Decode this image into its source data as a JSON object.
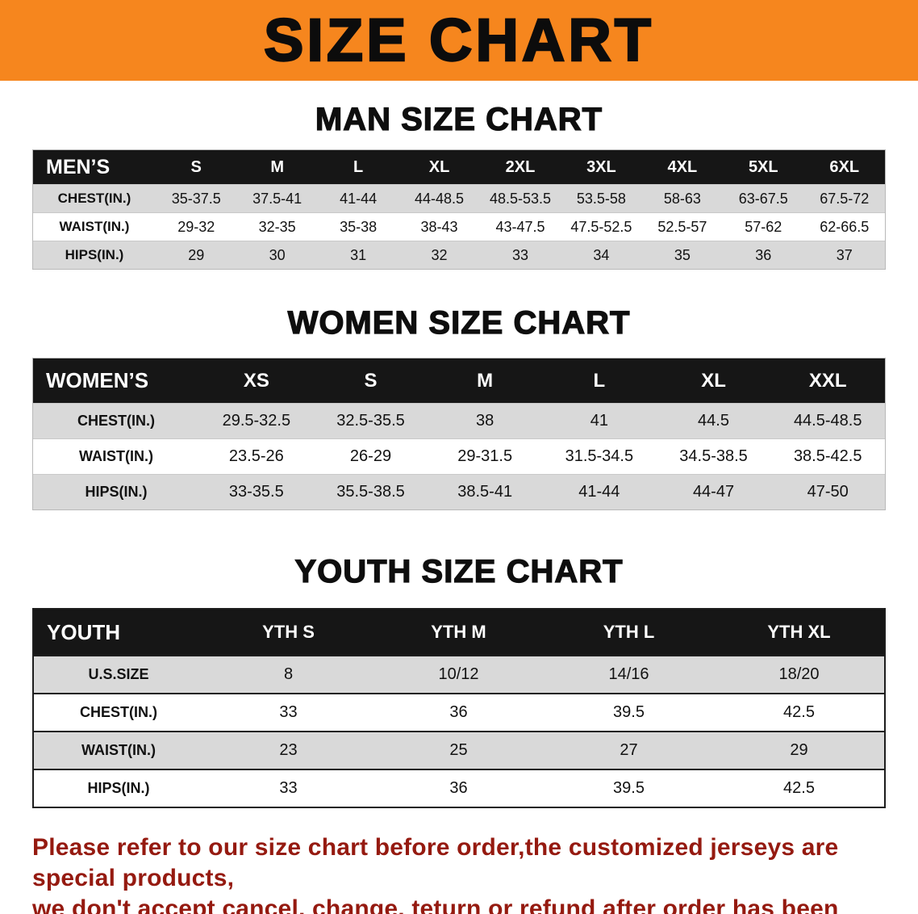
{
  "colors": {
    "banner_bg": "#f6861e",
    "table_header_bg": "#161616",
    "row_stripe": "#d9d9d9",
    "disclaimer_text": "#951a10"
  },
  "banner": {
    "title": "SIZE CHART"
  },
  "sections": [
    {
      "heading": "MAN SIZE CHART",
      "table": {
        "label": "MEN’S",
        "columns": [
          "S",
          "M",
          "L",
          "XL",
          "2XL",
          "3XL",
          "4XL",
          "5XL",
          "6XL"
        ],
        "rows": [
          {
            "label": "CHEST(IN.)",
            "values": [
              "35-37.5",
              "37.5-41",
              "41-44",
              "44-48.5",
              "48.5-53.5",
              "53.5-58",
              "58-63",
              "63-67.5",
              "67.5-72"
            ]
          },
          {
            "label": "WAIST(IN.)",
            "values": [
              "29-32",
              "32-35",
              "35-38",
              "38-43",
              "43-47.5",
              "47.5-52.5",
              "52.5-57",
              "57-62",
              "62-66.5"
            ]
          },
          {
            "label": "HIPS(IN.)",
            "values": [
              "29",
              "30",
              "31",
              "32",
              "33",
              "34",
              "35",
              "36",
              "37"
            ]
          }
        ]
      }
    },
    {
      "heading": "WOMEN SIZE CHART",
      "table": {
        "label": "WOMEN’S",
        "columns": [
          "XS",
          "S",
          "M",
          "L",
          "XL",
          "XXL"
        ],
        "rows": [
          {
            "label": "CHEST(IN.)",
            "values": [
              "29.5-32.5",
              "32.5-35.5",
              "38",
              "41",
              "44.5",
              "44.5-48.5"
            ]
          },
          {
            "label": "WAIST(IN.)",
            "values": [
              "23.5-26",
              "26-29",
              "29-31.5",
              "31.5-34.5",
              "34.5-38.5",
              "38.5-42.5"
            ]
          },
          {
            "label": "HIPS(IN.)",
            "values": [
              "33-35.5",
              "35.5-38.5",
              "38.5-41",
              "41-44",
              "44-47",
              "47-50"
            ]
          }
        ]
      }
    },
    {
      "heading": "YOUTH SIZE CHART",
      "table": {
        "label": "YOUTH",
        "columns": [
          "YTH S",
          "YTH M",
          "YTH L",
          "YTH XL"
        ],
        "rows": [
          {
            "label": "U.S.SIZE",
            "values": [
              "8",
              "10/12",
              "14/16",
              "18/20"
            ]
          },
          {
            "label": "CHEST(IN.)",
            "values": [
              "33",
              "36",
              "39.5",
              "42.5"
            ]
          },
          {
            "label": "WAIST(IN.)",
            "values": [
              "23",
              "25",
              "27",
              "29"
            ]
          },
          {
            "label": "HIPS(IN.)",
            "values": [
              "33",
              "36",
              "39.5",
              "42.5"
            ]
          }
        ]
      }
    }
  ],
  "footer": {
    "lines": [
      "Please refer to our size chart before order,the customized jerseys are special products,",
      "we don't accept cancel, change, teturn or refund after order has been placed!"
    ]
  }
}
